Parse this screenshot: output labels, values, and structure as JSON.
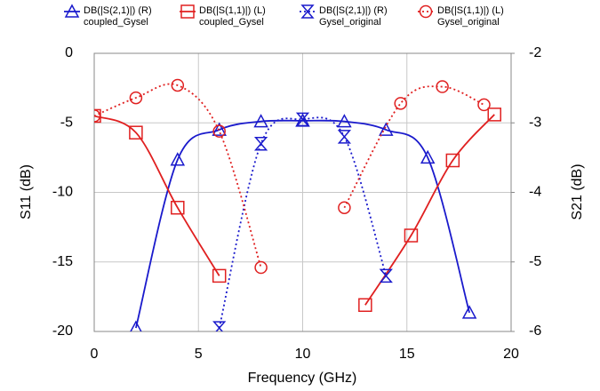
{
  "chart_data": {
    "type": "line",
    "xlabel": "Frequency (GHz)",
    "ylabel": "S11 (dB)",
    "y2label": "S21 (dB)",
    "xlim": [
      0,
      20
    ],
    "xticks": [
      0,
      5,
      10,
      15,
      20
    ],
    "ylim": [
      -20,
      0
    ],
    "yticks": [
      0,
      -5,
      -10,
      -15,
      -20
    ],
    "y2lim": [
      -6,
      -2
    ],
    "y2ticks": [
      -2,
      -3,
      -4,
      -5,
      -6
    ],
    "grid": true,
    "series": [
      {
        "name": "DB(|S(2,1)|) (R)\ncoupled_Gysel",
        "color": "#1a1acc",
        "axis": "y2",
        "linestyle": "solid",
        "marker": "triangle",
        "x": [
          2,
          4,
          6,
          8,
          10,
          12,
          14,
          16,
          18
        ],
        "values": [
          -5.95,
          -3.53,
          -3.1,
          -2.98,
          -2.97,
          -2.98,
          -3.1,
          -3.5,
          -5.73
        ]
      },
      {
        "name": "DB(|S(1,1)|) (L)\ncoupled_Gysel",
        "color": "#e02020",
        "axis": "y",
        "linestyle": "solid",
        "marker": "square",
        "x": [
          0,
          2,
          4,
          6,
          10,
          13,
          15.2,
          17.2,
          19.2
        ],
        "values": [
          -4.5,
          -5.7,
          -11.1,
          -16.0,
          null,
          -18.1,
          -13.1,
          -7.7,
          -4.4
        ]
      },
      {
        "name": "DB(|S(2,1)|) (R)\nGysel_original",
        "color": "#1a1acc",
        "axis": "y2",
        "linestyle": "dotted",
        "marker": "hourglass",
        "x": [
          6,
          8,
          10,
          12,
          14
        ],
        "values": [
          -5.95,
          -3.3,
          -2.95,
          -3.2,
          -5.2
        ]
      },
      {
        "name": "DB(|S(1,1)|) (L)\nGysel_original",
        "color": "#e02020",
        "axis": "y",
        "linestyle": "dotted",
        "marker": "circle",
        "x": [
          0,
          2,
          4,
          6,
          8,
          10,
          12,
          14.7,
          16.7,
          18.7
        ],
        "values": [
          -4.5,
          -3.2,
          -2.3,
          -5.6,
          -15.4,
          null,
          -11.1,
          -3.6,
          -2.4,
          -3.7
        ]
      }
    ]
  }
}
